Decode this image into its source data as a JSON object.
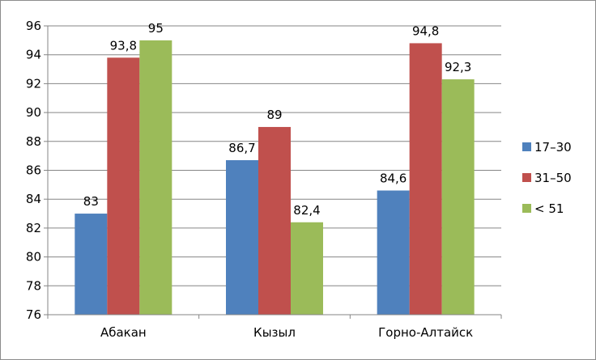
{
  "chart_data": {
    "type": "bar",
    "categories": [
      "Абакан",
      "Кызыл",
      "Горно-Алтайск"
    ],
    "series": [
      {
        "name": "17–30",
        "values": [
          83,
          86.7,
          84.6
        ],
        "color": "#4f81bd"
      },
      {
        "name": "31–50",
        "values": [
          93.8,
          89,
          94.8
        ],
        "color": "#c0504d"
      },
      {
        "name": "< 51",
        "values": [
          95,
          82.4,
          92.3
        ],
        "color": "#9bbb59"
      }
    ],
    "data_labels": [
      [
        "83",
        "86,7",
        "84,6"
      ],
      [
        "93,8",
        "89",
        "94,8"
      ],
      [
        "95",
        "82,4",
        "92,3"
      ]
    ],
    "y_ticks": [
      "76",
      "78",
      "80",
      "82",
      "84",
      "86",
      "88",
      "90",
      "92",
      "94",
      "96"
    ],
    "ylim": [
      76,
      96
    ],
    "grid": true,
    "legend_position": "right",
    "title": "",
    "xlabel": "",
    "ylabel": ""
  }
}
